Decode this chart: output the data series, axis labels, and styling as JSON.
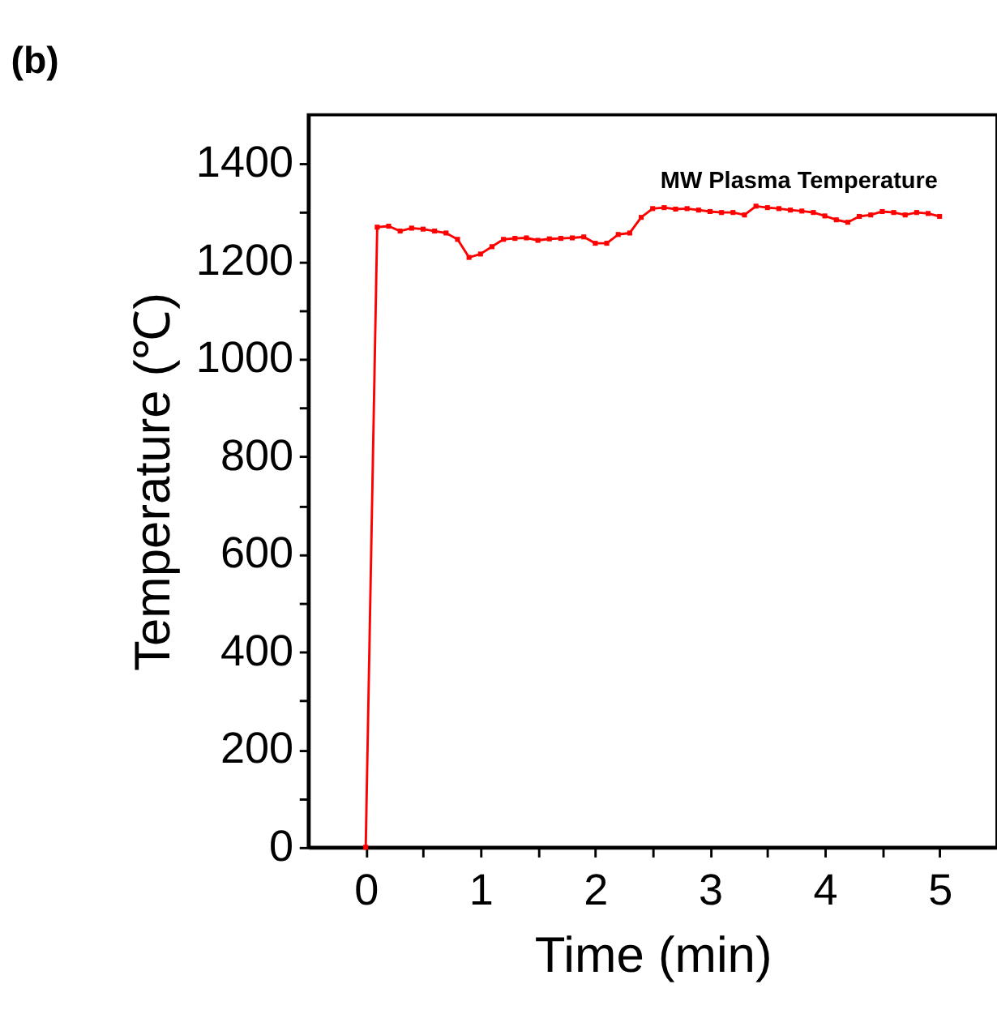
{
  "chart_data": {
    "type": "line",
    "title": "(b)",
    "xlabel": "Time (min)",
    "ylabel": "Temperature (℃)",
    "x": [
      0,
      0.1,
      0.2,
      0.3,
      0.4,
      0.5,
      0.6,
      0.7,
      0.8,
      0.9,
      1.0,
      1.1,
      1.2,
      1.3,
      1.4,
      1.5,
      1.6,
      1.7,
      1.8,
      1.9,
      2.0,
      2.1,
      2.2,
      2.3,
      2.4,
      2.5,
      2.6,
      2.7,
      2.8,
      2.9,
      3.0,
      3.1,
      3.2,
      3.3,
      3.4,
      3.5,
      3.6,
      3.7,
      3.8,
      3.9,
      4.0,
      4.1,
      4.2,
      4.3,
      4.4,
      4.5,
      4.6,
      4.7,
      4.8,
      4.9,
      5.0
    ],
    "series": [
      {
        "name": "MW Plasma Temperature",
        "color": "#ff0000",
        "values": [
          0,
          1270,
          1272,
          1262,
          1268,
          1266,
          1262,
          1258,
          1245,
          1208,
          1215,
          1230,
          1245,
          1247,
          1248,
          1243,
          1246,
          1247,
          1248,
          1250,
          1237,
          1237,
          1255,
          1258,
          1290,
          1308,
          1310,
          1307,
          1308,
          1305,
          1302,
          1300,
          1300,
          1295,
          1313,
          1310,
          1308,
          1305,
          1303,
          1300,
          1293,
          1285,
          1280,
          1292,
          1295,
          1302,
          1300,
          1295,
          1300,
          1298,
          1292
        ]
      }
    ],
    "xlim": [
      -0.5,
      5.5
    ],
    "xticks": [
      0,
      {
        "value": 0.5,
        "label": null
      },
      1,
      {
        "value": 1.5,
        "label": null
      },
      2,
      {
        "value": 2.5,
        "label": null
      },
      3,
      {
        "value": 3.5,
        "label": null
      },
      4,
      {
        "value": 4.5,
        "label": null
      },
      5
    ],
    "ylim": [
      0,
      1500
    ],
    "yticks": [
      0,
      {
        "value": 100,
        "label": null
      },
      200,
      {
        "value": 300,
        "label": null
      },
      400,
      {
        "value": 500,
        "label": null
      },
      600,
      {
        "value": 700,
        "label": null
      },
      800,
      {
        "value": 900,
        "label": null
      },
      1000,
      {
        "value": 1100,
        "label": null
      },
      1200,
      {
        "value": 1300,
        "label": null
      },
      1400
    ],
    "grid": false,
    "legend": false,
    "marker": "square",
    "line_style": "solid"
  }
}
